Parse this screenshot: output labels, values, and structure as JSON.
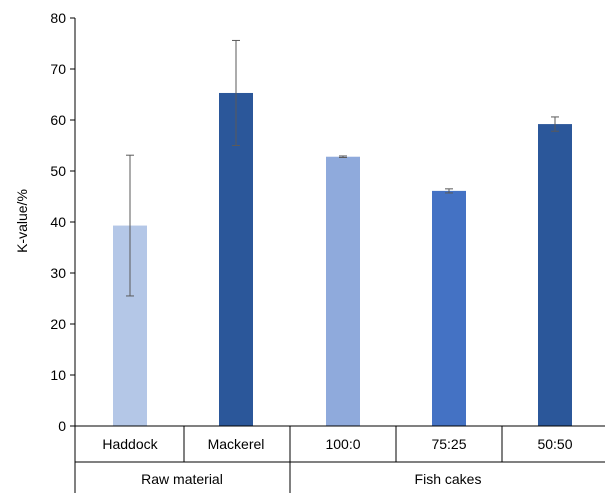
{
  "chart_data": {
    "type": "bar",
    "title": "",
    "xlabel": "",
    "ylabel": "K-value/%",
    "ylim": [
      0,
      80
    ],
    "yticks": [
      0,
      10,
      20,
      30,
      40,
      50,
      60,
      70,
      80
    ],
    "grid": false,
    "categories": [
      "Haddock",
      "Mackerel",
      "100:0",
      "75:25",
      "50:50"
    ],
    "values": [
      39.3,
      65.3,
      52.8,
      46.1,
      59.2
    ],
    "error": [
      13.8,
      10.3,
      0.15,
      0.4,
      1.4
    ],
    "colors": [
      "#b4c7e7",
      "#2b579a",
      "#8faadc",
      "#4472c4",
      "#2b579a"
    ],
    "groups": [
      {
        "label": "Raw material",
        "members": [
          0,
          1
        ]
      },
      {
        "label": "Fish cakes",
        "members": [
          2,
          3,
          4
        ]
      }
    ]
  }
}
